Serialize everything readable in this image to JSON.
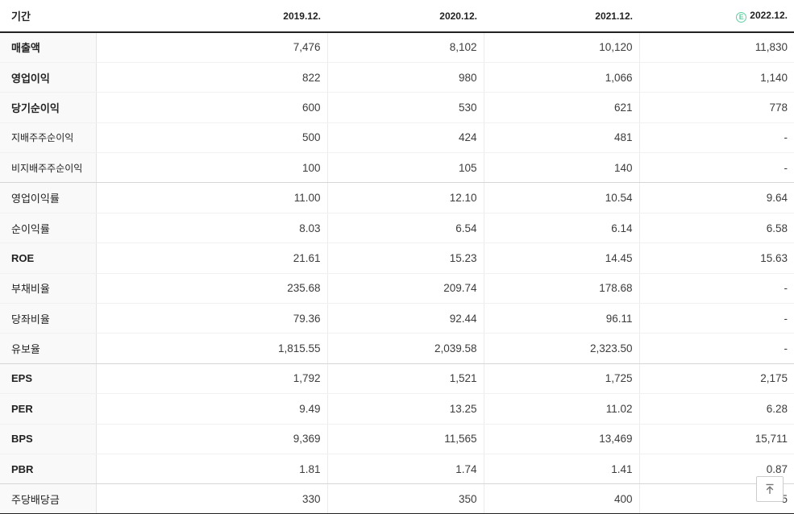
{
  "table": {
    "period_label": "기간",
    "columns": [
      "2019.12.",
      "2020.12.",
      "2021.12.",
      "2022.12."
    ],
    "estimate_icon": "E",
    "rows": [
      {
        "label": "매출액",
        "style": "bold",
        "group_end": false,
        "values": [
          "7,476",
          "8,102",
          "10,120",
          "11,830"
        ]
      },
      {
        "label": "영업이익",
        "style": "bold",
        "group_end": false,
        "values": [
          "822",
          "980",
          "1,066",
          "1,140"
        ]
      },
      {
        "label": "당기순이익",
        "style": "bold",
        "group_end": false,
        "values": [
          "600",
          "530",
          "621",
          "778"
        ]
      },
      {
        "label": "지배주주순이익",
        "style": "sub",
        "group_end": false,
        "values": [
          "500",
          "424",
          "481",
          "-"
        ]
      },
      {
        "label": "비지배주주순이익",
        "style": "sub",
        "group_end": true,
        "values": [
          "100",
          "105",
          "140",
          "-"
        ]
      },
      {
        "label": "영업이익률",
        "style": "normal",
        "group_end": false,
        "values": [
          "11.00",
          "12.10",
          "10.54",
          "9.64"
        ]
      },
      {
        "label": "순이익률",
        "style": "normal",
        "group_end": false,
        "values": [
          "8.03",
          "6.54",
          "6.14",
          "6.58"
        ]
      },
      {
        "label": "ROE",
        "style": "bold",
        "group_end": false,
        "values": [
          "21.61",
          "15.23",
          "14.45",
          "15.63"
        ]
      },
      {
        "label": "부채비율",
        "style": "normal",
        "group_end": false,
        "values": [
          "235.68",
          "209.74",
          "178.68",
          "-"
        ]
      },
      {
        "label": "당좌비율",
        "style": "normal",
        "group_end": false,
        "values": [
          "79.36",
          "92.44",
          "96.11",
          "-"
        ]
      },
      {
        "label": "유보율",
        "style": "normal",
        "group_end": true,
        "values": [
          "1,815.55",
          "2,039.58",
          "2,323.50",
          "-"
        ]
      },
      {
        "label": "EPS",
        "style": "bold",
        "group_end": false,
        "values": [
          "1,792",
          "1,521",
          "1,725",
          "2,175"
        ]
      },
      {
        "label": "PER",
        "style": "bold",
        "group_end": false,
        "values": [
          "9.49",
          "13.25",
          "11.02",
          "6.28"
        ]
      },
      {
        "label": "BPS",
        "style": "bold",
        "group_end": false,
        "values": [
          "9,369",
          "11,565",
          "13,469",
          "15,711"
        ]
      },
      {
        "label": "PBR",
        "style": "bold",
        "group_end": true,
        "values": [
          "1.81",
          "1.74",
          "1.41",
          "0.87"
        ]
      },
      {
        "label": "주당배당금",
        "style": "normal",
        "group_end": false,
        "values": [
          "330",
          "350",
          "400",
          "5"
        ]
      }
    ]
  },
  "colors": {
    "estimate_green": "#5fd0a0",
    "header_border": "#222222",
    "label_bg": "#f9f9f9"
  },
  "scroll_top_button": {
    "icon": "arrow-up-to-top"
  }
}
